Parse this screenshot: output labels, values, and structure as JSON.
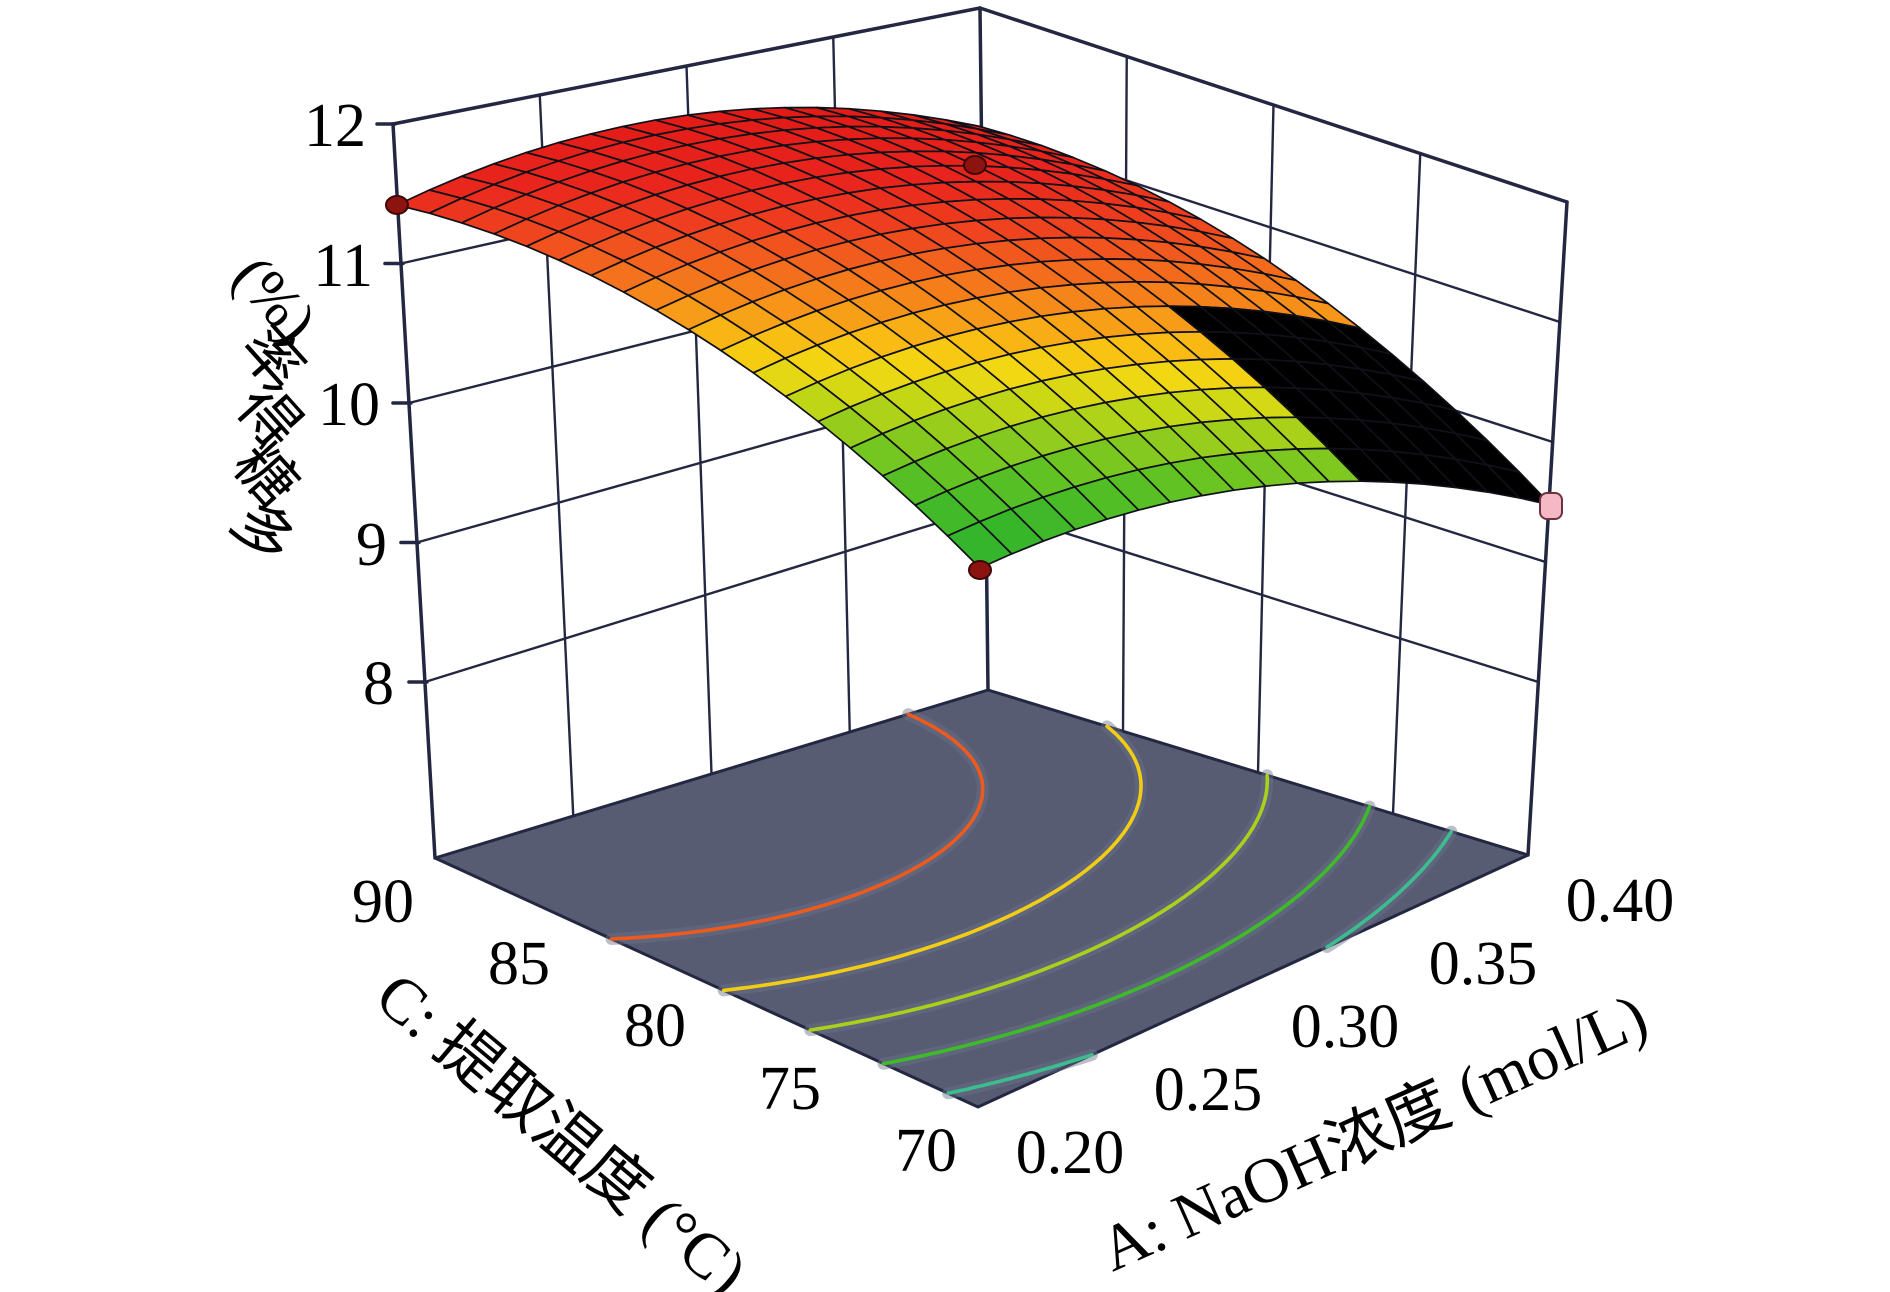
{
  "figure": {
    "background": "#ffffff",
    "box_line_color": "#232741",
    "floor_color": "#575c73",
    "contour_halo_color": "#6b7089"
  },
  "chart_data": {
    "type": "surface3d",
    "title": "",
    "z_axis": {
      "label": "多糖得率 (%)",
      "tick_labels": [
        "12",
        "11",
        "10",
        "9",
        "8"
      ],
      "ticks": [
        12,
        11,
        10,
        9,
        8
      ],
      "range": [
        8,
        12
      ]
    },
    "c_axis": {
      "label": "C: 提取温度 (°C)",
      "tick_labels": [
        "90",
        "85",
        "80",
        "75",
        "70"
      ],
      "ticks": [
        90,
        85,
        80,
        75,
        70
      ],
      "range": [
        90,
        70
      ]
    },
    "a_axis": {
      "label": "A: NaOH浓度 (mol/L)",
      "tick_labels": [
        "0.20",
        "0.25",
        "0.30",
        "0.35",
        "0.40"
      ],
      "ticks": [
        0.2,
        0.25,
        0.3,
        0.35,
        0.4
      ],
      "range": [
        0.2,
        0.4
      ]
    },
    "surface_model": {
      "note": "z(u,v)=a+bu*u+cv*v+du2*u^2+ev2*v^2+fuv*u*v ; u: C 90->70, v: A 0.20->0.40",
      "a": 11.45,
      "bu": -0.9,
      "cv": 1.8,
      "du2": -1.75,
      "ev2": -1.55,
      "fuv": 0.45,
      "z_min": 8.8,
      "z_max": 11.97,
      "corner_values": {
        "C90_A020": 11.45,
        "C70_A020": 8.8,
        "C90_A040": 11.7,
        "C70_A040": 9.5
      }
    },
    "floor_model": {
      "note": "projected contour model on base plane",
      "a": 11.45,
      "bu": -0.75,
      "cv": 1.1,
      "du2": -1.95,
      "ev2": -1.9,
      "fuv": 0.5
    },
    "contours": {
      "levels": [
        11,
        10.5,
        10,
        9.5,
        9
      ],
      "colors": [
        "#ed5a1e",
        "#f2cd14",
        "#abd01a",
        "#3fba29",
        "#3cbd8e"
      ]
    },
    "colormap": [
      [
        0.0,
        "#2fb32c"
      ],
      [
        0.1,
        "#38b62a"
      ],
      [
        0.22,
        "#5cc124"
      ],
      [
        0.32,
        "#8ecb1e"
      ],
      [
        0.4,
        "#c6d815"
      ],
      [
        0.47,
        "#f2d813"
      ],
      [
        0.53,
        "#f9c013"
      ],
      [
        0.6,
        "#f79a18"
      ],
      [
        0.68,
        "#f4711d"
      ],
      [
        0.78,
        "#ef431f"
      ],
      [
        0.88,
        "#e9241d"
      ],
      [
        1.0,
        "#e31b17"
      ]
    ],
    "mesh": {
      "rows": 18,
      "cols": 18
    },
    "design_points": [
      {
        "location": "C=90, A=0.20",
        "approx_z": 11.4,
        "marker": "dot",
        "color": "#8d1310"
      },
      {
        "location": "C=90, A=0.40",
        "approx_z": 11.6,
        "marker": "dot",
        "color": "#8d1310"
      },
      {
        "location": "C=70, A=0.20",
        "approx_z": 8.8,
        "marker": "dot",
        "color": "#8d1310"
      },
      {
        "location": "C=70, A=0.40",
        "approx_z": 9.5,
        "marker": "square",
        "color": "#f5b9c6"
      }
    ]
  }
}
